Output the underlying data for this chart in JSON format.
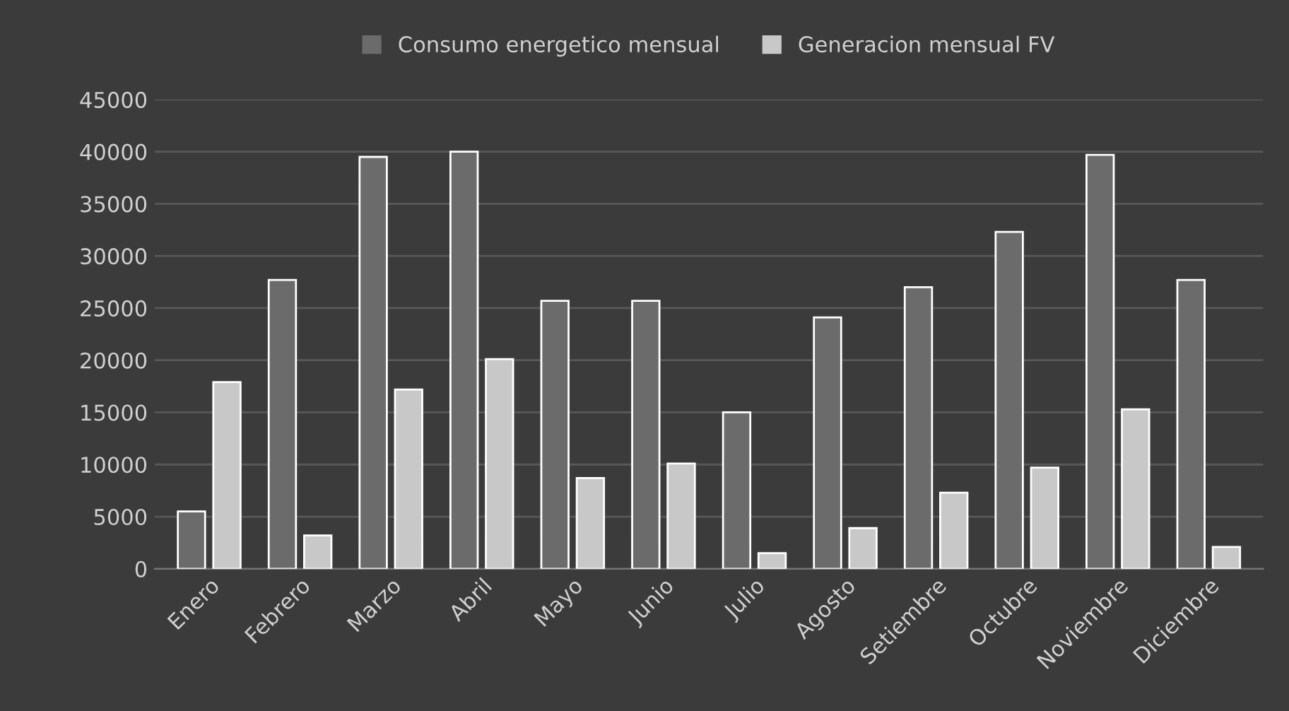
{
  "chart_data": {
    "type": "bar",
    "categories": [
      "Enero",
      "Febrero",
      "Marzo",
      "Abril",
      "Mayo",
      "Junio",
      "Julio",
      "Agosto",
      "Setiembre",
      "Octubre",
      "Noviembre",
      "Diciembre"
    ],
    "series": [
      {
        "name": "Consumo energetico mensual",
        "color": "#6b6b6b",
        "values": [
          5500,
          27700,
          39500,
          40000,
          25700,
          25700,
          15000,
          24100,
          27000,
          32300,
          39700,
          27700
        ]
      },
      {
        "name": "Generacion mensual FV",
        "color": "#c8c8c8",
        "values": [
          17900,
          3200,
          17200,
          20100,
          8700,
          10100,
          1500,
          3900,
          7300,
          9700,
          15300,
          2100
        ]
      }
    ],
    "ylim": [
      0,
      45000
    ],
    "yticks": [
      0,
      5000,
      10000,
      15000,
      20000,
      25000,
      30000,
      35000,
      40000,
      45000
    ],
    "grid": "y",
    "legend": "top"
  }
}
